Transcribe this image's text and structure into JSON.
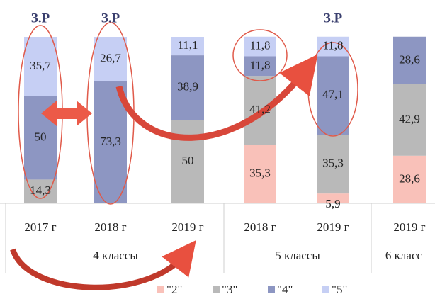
{
  "chart_data": {
    "type": "bar",
    "stacked": true,
    "categories": [
      "2017 г",
      "2018 г",
      "2019 г",
      "2018 г",
      "2019 г",
      "2019 г"
    ],
    "groups": [
      "4 классы",
      "5 классы",
      "6 класс"
    ],
    "series": [
      {
        "name": "\"2\"",
        "color": "#f9c1b9",
        "values": [
          null,
          null,
          null,
          35.3,
          5.9,
          28.6
        ],
        "value_labels": [
          null,
          null,
          null,
          "35,3",
          "5,9",
          "28,6"
        ]
      },
      {
        "name": "\"3\"",
        "color": "#b9b9b9",
        "values": [
          14.3,
          null,
          50,
          41.2,
          35.3,
          42.9
        ],
        "value_labels": [
          "14,3",
          null,
          "50",
          "41,2",
          "35,3",
          "42,9"
        ]
      },
      {
        "name": "\"4\"",
        "color": "#8d96c2",
        "values": [
          50,
          73.3,
          38.9,
          11.8,
          47.1,
          28.6
        ],
        "value_labels": [
          "50",
          "73,3",
          "38,9",
          "11,8",
          "47,1",
          "28,6"
        ]
      },
      {
        "name": "\"5\"",
        "color": "#c6cff4",
        "values": [
          35.7,
          26.7,
          11.1,
          11.8,
          11.8,
          null
        ],
        "value_labels": [
          "35,7",
          "26,7",
          "11,1",
          "11,8",
          "11,8",
          null
        ]
      }
    ],
    "annotations": [
      "З.Р",
      "З.Р",
      "З.Р"
    ],
    "ylim": [
      0,
      100
    ]
  }
}
